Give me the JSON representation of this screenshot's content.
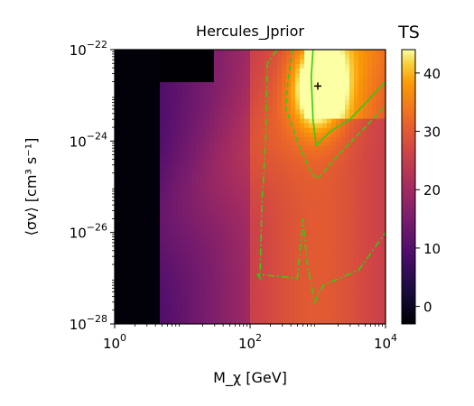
{
  "chart_data": {
    "type": "heatmap",
    "title": "Hercules_Jprior",
    "xlabel": "M_χ [GeV]",
    "ylabel": "⟨σv⟩ [cm³ s⁻¹]",
    "x_scale": "log",
    "y_scale": "log",
    "xlim": [
      1,
      10000
    ],
    "ylim": [
      1e-28,
      1e-22
    ],
    "x_ticks": [
      {
        "value": 1,
        "base": "10",
        "exp": "0"
      },
      {
        "value": 100,
        "base": "10",
        "exp": "2"
      },
      {
        "value": 10000,
        "base": "10",
        "exp": "4"
      }
    ],
    "y_ticks": [
      {
        "value": 1e-28,
        "base": "10",
        "exp": "−28"
      },
      {
        "value": 1e-26,
        "base": "10",
        "exp": "−26"
      },
      {
        "value": 1e-24,
        "base": "10",
        "exp": "−24"
      },
      {
        "value": 1e-22,
        "base": "10",
        "exp": "−22"
      }
    ],
    "colorbar": {
      "title": "TS",
      "colormap": "inferno",
      "range": [
        -3,
        44
      ],
      "ticks": [
        "0",
        "10",
        "20",
        "30",
        "40"
      ],
      "tick_values": [
        0,
        10,
        20,
        30,
        40
      ]
    },
    "best_fit": {
      "mass_gev": 1000,
      "sigma_v": 1.6e-23,
      "marker": "+"
    },
    "contours": [
      {
        "style": "solid",
        "color": "#33cc11",
        "points": [
          [
            850,
            1e-22
          ],
          [
            800,
            2.5e-23
          ],
          [
            850,
            3e-24
          ],
          [
            950,
            8e-25
          ],
          [
            1500,
            1.6e-24
          ],
          [
            3000,
            3e-24
          ],
          [
            10000,
            2e-23
          ]
        ]
      },
      {
        "style": "dashed",
        "color": "#33cc11",
        "points": [
          [
            420,
            1e-22
          ],
          [
            400,
            5e-23
          ],
          [
            360,
            2e-23
          ],
          [
            340,
            5e-24
          ],
          [
            500,
            1e-24
          ],
          [
            800,
            2e-25
          ],
          [
            1000,
            1.5e-25
          ],
          [
            2000,
            5e-25
          ],
          [
            5000,
            2e-24
          ],
          [
            10000,
            6e-24
          ]
        ]
      },
      {
        "style": "dashdot",
        "color": "#33cc11",
        "points": [
          [
            250,
            1e-22
          ],
          [
            180,
            5e-23
          ],
          [
            170,
            1e-24
          ],
          [
            150,
            5e-26
          ],
          [
            140,
            1e-27
          ],
          [
            130,
            1.2e-27
          ],
          [
            500,
            1e-27
          ],
          [
            600,
            2e-26
          ],
          [
            700,
            2e-27
          ],
          [
            900,
            3e-28
          ],
          [
            1200,
            7e-28
          ],
          [
            4000,
            1.5e-27
          ],
          [
            10000,
            1e-26
          ]
        ]
      }
    ],
    "grid": false
  }
}
